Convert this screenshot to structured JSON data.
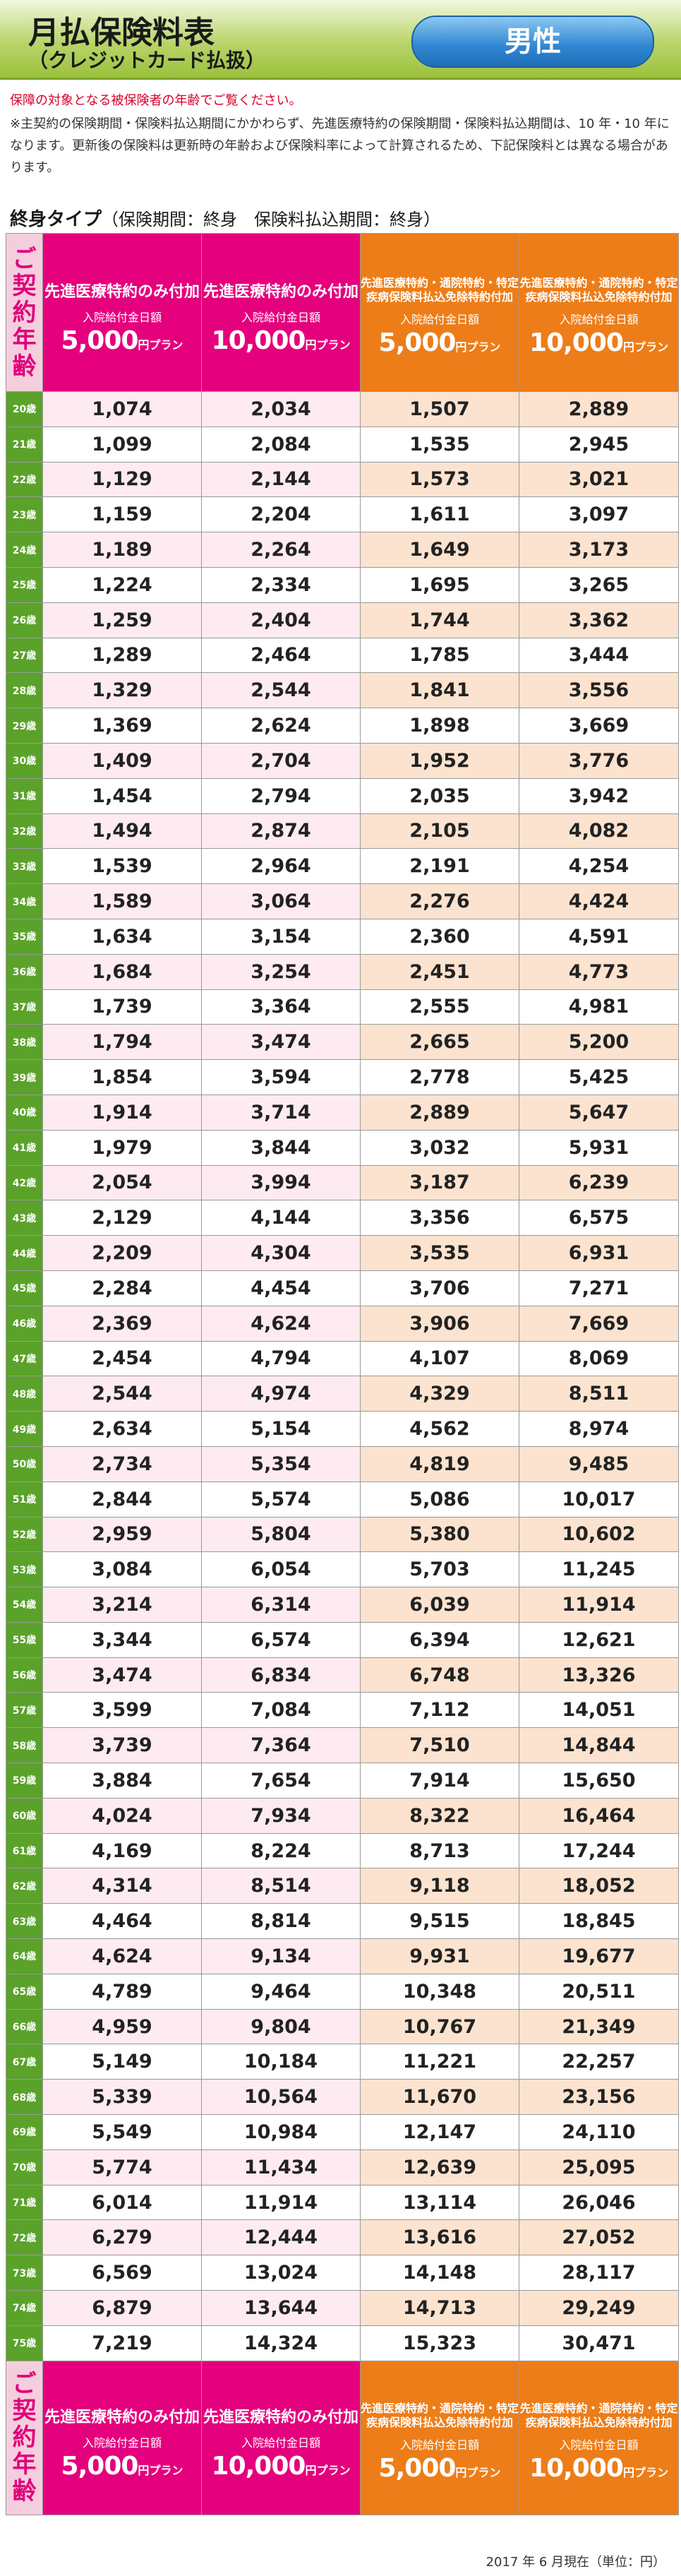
{
  "header": {
    "title": "月払保険料表",
    "subtitle": "（クレジットカード払扱）",
    "gender": "男性"
  },
  "notes": {
    "red": "保障の対象となる被保険者の年齢でご覧ください。",
    "main": "※主契約の保険期間・保険料払込期間にかかわらず、先進医療特約の保険期間・保険料払込期間は、10 年・10 年になります。更新後の保険料は更新時の年齢および保険料率によって計算されるため、下記保険料とは異なる場合があります。"
  },
  "type_label": {
    "main": "終身タイプ",
    "sub": "（保険期間：終身　保険料払込期間：終身）"
  },
  "columns": {
    "age_header": "ご契約年齢",
    "c1": {
      "title": "先進医療特約のみ付加",
      "amount_label": "入院給付金日額",
      "amount": "5,000",
      "unit": "円プラン"
    },
    "c2": {
      "title": "先進医療特約のみ付加",
      "amount_label": "入院給付金日額",
      "amount": "10,000",
      "unit": "円プラン"
    },
    "c3": {
      "title": "先進医療特約・通院特約・特定疾病保険料払込免除特約付加",
      "amount_label": "入院給付金日額",
      "amount": "5,000",
      "unit": "円プラン"
    },
    "c4": {
      "title": "先進医療特約・通院特約・特定疾病保険料払込免除特約付加",
      "amount_label": "入院給付金日額",
      "amount": "10,000",
      "unit": "円プラン"
    }
  },
  "rows": [
    {
      "age": "20歳",
      "v": [
        "1,074",
        "2,034",
        "1,507",
        "2,889"
      ]
    },
    {
      "age": "21歳",
      "v": [
        "1,099",
        "2,084",
        "1,535",
        "2,945"
      ]
    },
    {
      "age": "22歳",
      "v": [
        "1,129",
        "2,144",
        "1,573",
        "3,021"
      ]
    },
    {
      "age": "23歳",
      "v": [
        "1,159",
        "2,204",
        "1,611",
        "3,097"
      ]
    },
    {
      "age": "24歳",
      "v": [
        "1,189",
        "2,264",
        "1,649",
        "3,173"
      ]
    },
    {
      "age": "25歳",
      "v": [
        "1,224",
        "2,334",
        "1,695",
        "3,265"
      ]
    },
    {
      "age": "26歳",
      "v": [
        "1,259",
        "2,404",
        "1,744",
        "3,362"
      ]
    },
    {
      "age": "27歳",
      "v": [
        "1,289",
        "2,464",
        "1,785",
        "3,444"
      ]
    },
    {
      "age": "28歳",
      "v": [
        "1,329",
        "2,544",
        "1,841",
        "3,556"
      ]
    },
    {
      "age": "29歳",
      "v": [
        "1,369",
        "2,624",
        "1,898",
        "3,669"
      ]
    },
    {
      "age": "30歳",
      "v": [
        "1,409",
        "2,704",
        "1,952",
        "3,776"
      ]
    },
    {
      "age": "31歳",
      "v": [
        "1,454",
        "2,794",
        "2,035",
        "3,942"
      ]
    },
    {
      "age": "32歳",
      "v": [
        "1,494",
        "2,874",
        "2,105",
        "4,082"
      ]
    },
    {
      "age": "33歳",
      "v": [
        "1,539",
        "2,964",
        "2,191",
        "4,254"
      ]
    },
    {
      "age": "34歳",
      "v": [
        "1,589",
        "3,064",
        "2,276",
        "4,424"
      ]
    },
    {
      "age": "35歳",
      "v": [
        "1,634",
        "3,154",
        "2,360",
        "4,591"
      ]
    },
    {
      "age": "36歳",
      "v": [
        "1,684",
        "3,254",
        "2,451",
        "4,773"
      ]
    },
    {
      "age": "37歳",
      "v": [
        "1,739",
        "3,364",
        "2,555",
        "4,981"
      ]
    },
    {
      "age": "38歳",
      "v": [
        "1,794",
        "3,474",
        "2,665",
        "5,200"
      ]
    },
    {
      "age": "39歳",
      "v": [
        "1,854",
        "3,594",
        "2,778",
        "5,425"
      ]
    },
    {
      "age": "40歳",
      "v": [
        "1,914",
        "3,714",
        "2,889",
        "5,647"
      ]
    },
    {
      "age": "41歳",
      "v": [
        "1,979",
        "3,844",
        "3,032",
        "5,931"
      ]
    },
    {
      "age": "42歳",
      "v": [
        "2,054",
        "3,994",
        "3,187",
        "6,239"
      ]
    },
    {
      "age": "43歳",
      "v": [
        "2,129",
        "4,144",
        "3,356",
        "6,575"
      ]
    },
    {
      "age": "44歳",
      "v": [
        "2,209",
        "4,304",
        "3,535",
        "6,931"
      ]
    },
    {
      "age": "45歳",
      "v": [
        "2,284",
        "4,454",
        "3,706",
        "7,271"
      ]
    },
    {
      "age": "46歳",
      "v": [
        "2,369",
        "4,624",
        "3,906",
        "7,669"
      ]
    },
    {
      "age": "47歳",
      "v": [
        "2,454",
        "4,794",
        "4,107",
        "8,069"
      ]
    },
    {
      "age": "48歳",
      "v": [
        "2,544",
        "4,974",
        "4,329",
        "8,511"
      ]
    },
    {
      "age": "49歳",
      "v": [
        "2,634",
        "5,154",
        "4,562",
        "8,974"
      ]
    },
    {
      "age": "50歳",
      "v": [
        "2,734",
        "5,354",
        "4,819",
        "9,485"
      ]
    },
    {
      "age": "51歳",
      "v": [
        "2,844",
        "5,574",
        "5,086",
        "10,017"
      ]
    },
    {
      "age": "52歳",
      "v": [
        "2,959",
        "5,804",
        "5,380",
        "10,602"
      ]
    },
    {
      "age": "53歳",
      "v": [
        "3,084",
        "6,054",
        "5,703",
        "11,245"
      ]
    },
    {
      "age": "54歳",
      "v": [
        "3,214",
        "6,314",
        "6,039",
        "11,914"
      ]
    },
    {
      "age": "55歳",
      "v": [
        "3,344",
        "6,574",
        "6,394",
        "12,621"
      ]
    },
    {
      "age": "56歳",
      "v": [
        "3,474",
        "6,834",
        "6,748",
        "13,326"
      ]
    },
    {
      "age": "57歳",
      "v": [
        "3,599",
        "7,084",
        "7,112",
        "14,051"
      ]
    },
    {
      "age": "58歳",
      "v": [
        "3,739",
        "7,364",
        "7,510",
        "14,844"
      ]
    },
    {
      "age": "59歳",
      "v": [
        "3,884",
        "7,654",
        "7,914",
        "15,650"
      ]
    },
    {
      "age": "60歳",
      "v": [
        "4,024",
        "7,934",
        "8,322",
        "16,464"
      ]
    },
    {
      "age": "61歳",
      "v": [
        "4,169",
        "8,224",
        "8,713",
        "17,244"
      ]
    },
    {
      "age": "62歳",
      "v": [
        "4,314",
        "8,514",
        "9,118",
        "18,052"
      ]
    },
    {
      "age": "63歳",
      "v": [
        "4,464",
        "8,814",
        "9,515",
        "18,845"
      ]
    },
    {
      "age": "64歳",
      "v": [
        "4,624",
        "9,134",
        "9,931",
        "19,677"
      ]
    },
    {
      "age": "65歳",
      "v": [
        "4,789",
        "9,464",
        "10,348",
        "20,511"
      ]
    },
    {
      "age": "66歳",
      "v": [
        "4,959",
        "9,804",
        "10,767",
        "21,349"
      ]
    },
    {
      "age": "67歳",
      "v": [
        "5,149",
        "10,184",
        "11,221",
        "22,257"
      ]
    },
    {
      "age": "68歳",
      "v": [
        "5,339",
        "10,564",
        "11,670",
        "23,156"
      ]
    },
    {
      "age": "69歳",
      "v": [
        "5,549",
        "10,984",
        "12,147",
        "24,110"
      ]
    },
    {
      "age": "70歳",
      "v": [
        "5,774",
        "11,434",
        "12,639",
        "25,095"
      ]
    },
    {
      "age": "71歳",
      "v": [
        "6,014",
        "11,914",
        "13,114",
        "26,046"
      ]
    },
    {
      "age": "72歳",
      "v": [
        "6,279",
        "12,444",
        "13,616",
        "27,052"
      ]
    },
    {
      "age": "73歳",
      "v": [
        "6,569",
        "13,024",
        "14,148",
        "28,117"
      ]
    },
    {
      "age": "74歳",
      "v": [
        "6,879",
        "13,644",
        "14,713",
        "29,249"
      ]
    },
    {
      "age": "75歳",
      "v": [
        "7,219",
        "14,324",
        "15,323",
        "30,471"
      ]
    }
  ],
  "footer": {
    "date": "2017 年 6 月現在（単位：円）"
  },
  "colors": {
    "pink": "#e5007e",
    "orange": "#ed7d18",
    "green": "#5aa22a",
    "header_green": "#9cc13d",
    "gender_blue": "#2f86d1"
  }
}
